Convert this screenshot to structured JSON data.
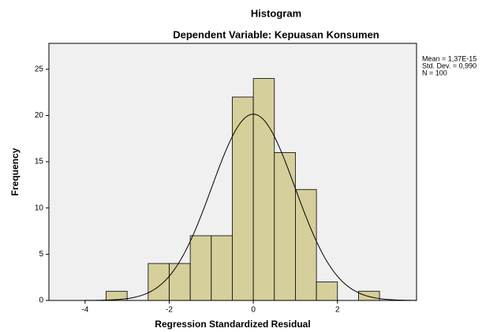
{
  "chart_data": {
    "type": "histogram",
    "title": "Histogram",
    "subtitle": "Dependent Variable: Kepuasan Konsumen",
    "xlabel": "Regression Standardized Residual",
    "ylabel": "Frequency",
    "bins": [
      -3.5,
      -3,
      -2.5,
      -2,
      -1.5,
      -1,
      -0.5,
      0,
      0.5,
      1,
      1.5,
      2,
      2.5,
      3
    ],
    "counts": [
      1,
      0,
      4,
      4,
      7,
      7,
      22,
      24,
      16,
      12,
      2,
      0,
      1
    ],
    "color": "#d5cf9b",
    "xlim": [
      -4.86,
      3.88
    ],
    "xticks": [
      -4,
      -2,
      0,
      2
    ],
    "ylim": [
      0,
      27.8
    ],
    "yticks": [
      0,
      5,
      10,
      15,
      20,
      25
    ],
    "stats": {
      "mean": {
        "value": 1.37e-15,
        "label": "Mean = 1,37E-15"
      },
      "sd": {
        "value": 0.99,
        "label": "Std. Dev. = 0,990"
      },
      "n": {
        "value": 100,
        "label": "N = 100"
      }
    }
  }
}
